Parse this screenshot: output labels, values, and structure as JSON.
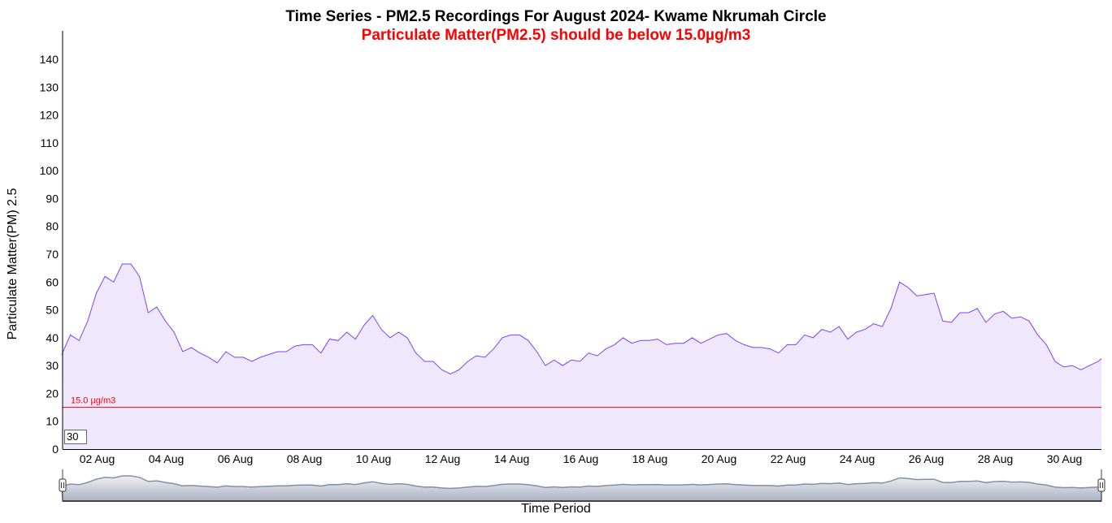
{
  "chart_data": {
    "type": "area",
    "title": "Time Series - PM2.5 Recordings For August 2024- Kwame Nkrumah Circle",
    "subtitle": "Particulate Matter(PM2.5) should be below 15.0µg/m3",
    "xlabel": "Time Period",
    "ylabel": "Particulate Matter(PM) 2.5",
    "ylim": [
      0,
      140
    ],
    "yticks": [
      0,
      10,
      20,
      30,
      40,
      50,
      60,
      70,
      80,
      90,
      100,
      110,
      120,
      130,
      140
    ],
    "xlim_days": [
      0,
      30.1
    ],
    "xtick_labels": [
      "02 Aug",
      "04 Aug",
      "06 Aug",
      "08 Aug",
      "10 Aug",
      "12 Aug",
      "14 Aug",
      "16 Aug",
      "18 Aug",
      "20 Aug",
      "22 Aug",
      "24 Aug",
      "26 Aug",
      "28 Aug",
      "30 Aug"
    ],
    "xtick_days": [
      1,
      3,
      5,
      7,
      9,
      11,
      13,
      15,
      17,
      19,
      21,
      23,
      25,
      27,
      29
    ],
    "x_step_days": 0.25,
    "series": [
      {
        "name": "PM2.5",
        "color": "#7744ff",
        "fill": "#efe8fd",
        "values": [
          34,
          41,
          39,
          46,
          56,
          62,
          60,
          66.5,
          66.5,
          62,
          49,
          51,
          46,
          42,
          35,
          36.5,
          34.5,
          33,
          31,
          35,
          33,
          33,
          31.5,
          33,
          34,
          35,
          35,
          37,
          37.5,
          37.5,
          34.5,
          39.5,
          39,
          42,
          39.5,
          44.5,
          48,
          43,
          40,
          42,
          40,
          34.5,
          31.5,
          31.5,
          28.5,
          27,
          28.5,
          31.5,
          33.5,
          33,
          36,
          40,
          41,
          41,
          39,
          35,
          30,
          32,
          30,
          32,
          31.5,
          34.5,
          33.5,
          36,
          37.5,
          40,
          38,
          39,
          39,
          39.5,
          37.5,
          38,
          38,
          40,
          38,
          39.5,
          41,
          41.5,
          39,
          37.5,
          36.5,
          36.5,
          36,
          34.5,
          37.5,
          37.5,
          41,
          40,
          43,
          42,
          44,
          39.5,
          42,
          43,
          45,
          44,
          50.5,
          60,
          58,
          55,
          55.5,
          56,
          46,
          45.5,
          49,
          49,
          50.5,
          45.5,
          48.5,
          49.5,
          47,
          47.5,
          46,
          41,
          37.5,
          31.5,
          29.5,
          30,
          28.5,
          30,
          31.5
        ]
      }
    ],
    "threshold": {
      "value": 15.0,
      "label": "15.0 µg/m3",
      "color": "#ff0000"
    },
    "rolling_period": "30",
    "grid": false,
    "range_selector": true
  }
}
